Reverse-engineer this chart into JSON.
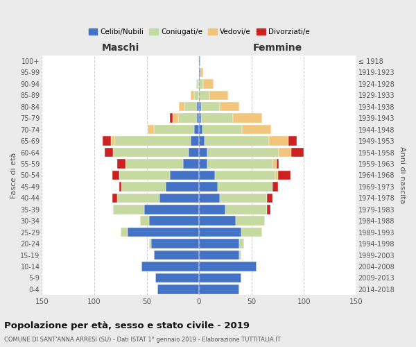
{
  "age_groups": [
    "0-4",
    "5-9",
    "10-14",
    "15-19",
    "20-24",
    "25-29",
    "30-34",
    "35-39",
    "40-44",
    "45-49",
    "50-54",
    "55-59",
    "60-64",
    "65-69",
    "70-74",
    "75-79",
    "80-84",
    "85-89",
    "90-94",
    "95-99",
    "100+"
  ],
  "birth_years": [
    "2014-2018",
    "2009-2013",
    "2004-2008",
    "1999-2003",
    "1994-1998",
    "1989-1993",
    "1984-1988",
    "1979-1983",
    "1974-1978",
    "1969-1973",
    "1964-1968",
    "1959-1963",
    "1954-1958",
    "1949-1953",
    "1944-1948",
    "1939-1943",
    "1934-1938",
    "1929-1933",
    "1924-1928",
    "1919-1923",
    "≤ 1918"
  ],
  "male": {
    "celibe": [
      40,
      42,
      55,
      43,
      46,
      68,
      48,
      52,
      38,
      32,
      28,
      15,
      10,
      8,
      5,
      2,
      2,
      0,
      0,
      0,
      0
    ],
    "coniugato": [
      0,
      0,
      0,
      0,
      2,
      7,
      8,
      30,
      40,
      42,
      48,
      55,
      72,
      73,
      38,
      18,
      12,
      5,
      2,
      0,
      0
    ],
    "vedovo": [
      0,
      0,
      0,
      0,
      0,
      0,
      0,
      0,
      0,
      0,
      0,
      0,
      0,
      3,
      6,
      5,
      5,
      3,
      1,
      0,
      0
    ],
    "divorziato": [
      0,
      0,
      0,
      0,
      0,
      0,
      0,
      0,
      5,
      2,
      7,
      8,
      8,
      8,
      0,
      3,
      0,
      0,
      0,
      0,
      0
    ]
  },
  "female": {
    "nubile": [
      38,
      40,
      55,
      38,
      38,
      40,
      35,
      25,
      20,
      18,
      15,
      8,
      8,
      5,
      3,
      2,
      2,
      0,
      0,
      1,
      1
    ],
    "coniugata": [
      0,
      0,
      0,
      2,
      5,
      20,
      28,
      40,
      45,
      52,
      58,
      62,
      68,
      62,
      38,
      30,
      18,
      10,
      4,
      0,
      0
    ],
    "vedova": [
      0,
      0,
      0,
      0,
      0,
      0,
      0,
      0,
      0,
      0,
      2,
      4,
      12,
      18,
      28,
      28,
      18,
      18,
      10,
      3,
      0
    ],
    "divorziata": [
      0,
      0,
      0,
      0,
      0,
      0,
      0,
      3,
      5,
      5,
      12,
      2,
      12,
      8,
      0,
      0,
      0,
      0,
      0,
      0,
      0
    ]
  },
  "colors": {
    "celibe": "#4472C4",
    "coniugato": "#C5D9A0",
    "vedovo": "#F2C57C",
    "divorziato": "#CC2222"
  },
  "title": "Popolazione per età, sesso e stato civile - 2019",
  "subtitle": "COMUNE DI SANT'ANNA ARRESI (SU) - Dati ISTAT 1° gennaio 2019 - Elaborazione TUTTITALIA.IT",
  "xlabel_left": "Maschi",
  "xlabel_right": "Femmine",
  "ylabel_left": "Fasce di età",
  "ylabel_right": "Anni di nascita",
  "xlim": 150,
  "bg_color": "#ebebeb",
  "plot_bg": "#ffffff",
  "legend_labels": [
    "Celibi/Nubili",
    "Coniugati/e",
    "Vedovi/e",
    "Divorziati/e"
  ]
}
